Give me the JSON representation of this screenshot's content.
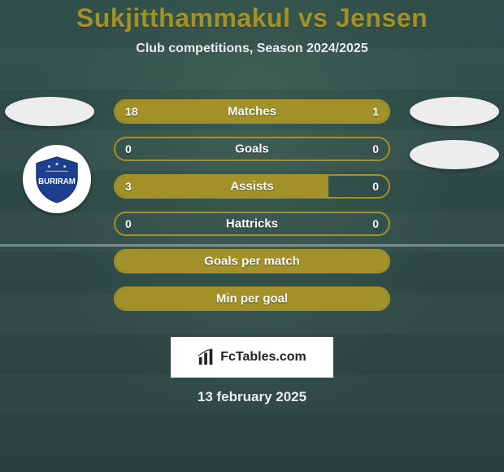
{
  "title": "Sukjitthammakul vs Jensen",
  "subtitle": "Club competitions, Season 2024/2025",
  "colors": {
    "accent": "#a19128",
    "text_light": "#e9ecef",
    "title_color": "#a19128",
    "row_border": "#a19128",
    "row_fill": "#a19128",
    "logo_bg": "#ffffff",
    "logo_text": "#222222",
    "bg_hint": "#2f4e4a"
  },
  "typography": {
    "title_fontsize": 32,
    "subtitle_fontsize": 16,
    "row_label_fontsize": 15,
    "row_value_fontsize": 14,
    "date_fontsize": 17
  },
  "rows": [
    {
      "label": "Matches",
      "left_value": "18",
      "right_value": "1",
      "left_pct": 78,
      "right_pct": 22
    },
    {
      "label": "Goals",
      "left_value": "0",
      "right_value": "0",
      "left_pct": 0,
      "right_pct": 0
    },
    {
      "label": "Assists",
      "left_value": "3",
      "right_value": "0",
      "left_pct": 78,
      "right_pct": 0
    },
    {
      "label": "Hattricks",
      "left_value": "0",
      "right_value": "0",
      "left_pct": 0,
      "right_pct": 0
    },
    {
      "label": "Goals per match",
      "left_value": "",
      "right_value": "",
      "left_pct": 100,
      "right_pct": 0
    },
    {
      "label": "Min per goal",
      "left_value": "",
      "right_value": "",
      "left_pct": 100,
      "right_pct": 0
    }
  ],
  "logo_text": "FcTables.com",
  "date": "13 february 2025"
}
